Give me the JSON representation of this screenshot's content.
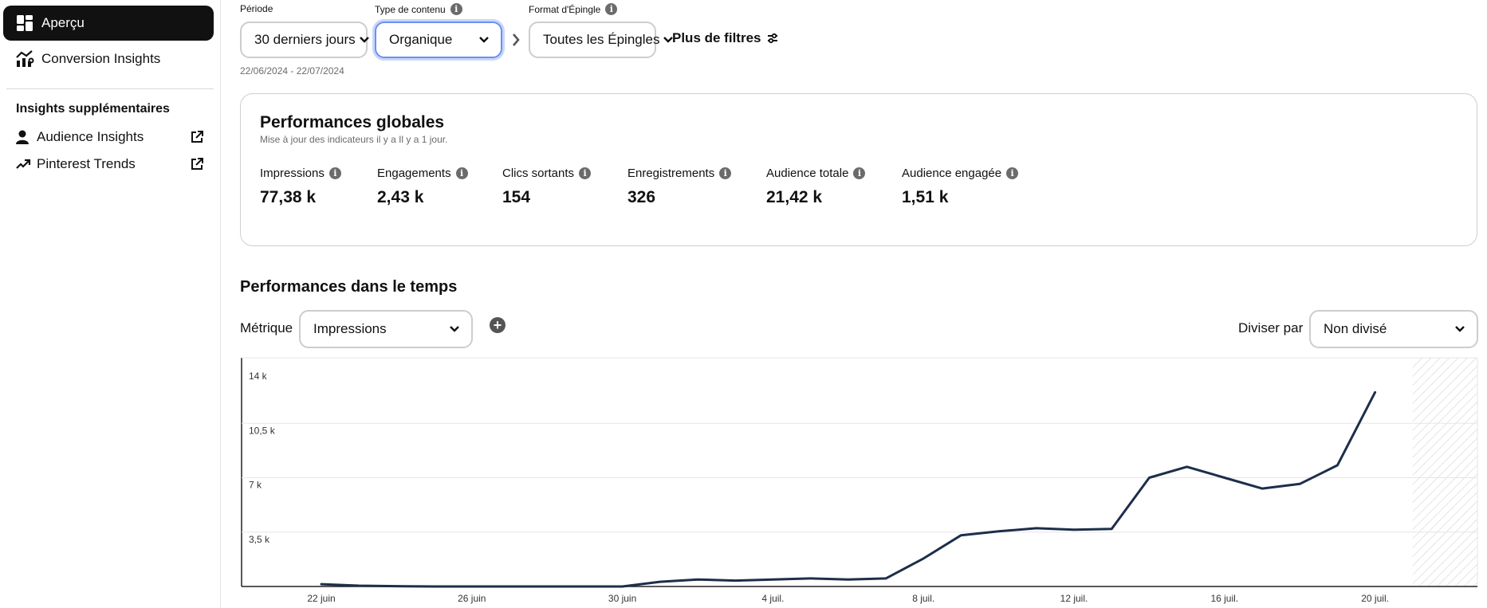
{
  "sidebar": {
    "items": [
      {
        "label": "Aperçu",
        "icon": "dashboard-icon",
        "active": true
      },
      {
        "label": "Conversion Insights",
        "icon": "conversion-chart-icon",
        "active": false
      }
    ],
    "extra_heading": "Insights supplémentaires",
    "extra_items": [
      {
        "label": "Audience Insights",
        "icon": "person-icon"
      },
      {
        "label": "Pinterest Trends",
        "icon": "trend-arrow-icon"
      }
    ]
  },
  "filters": {
    "period": {
      "label": "Période",
      "value": "30 derniers jours"
    },
    "content_type": {
      "label": "Type de contenu",
      "value": "Organique"
    },
    "pin_format": {
      "label": "Format d'Épingle",
      "value": "Toutes les Épingles"
    },
    "more": "Plus de filtres",
    "date_range": "22/06/2024 - 22/07/2024"
  },
  "overview": {
    "title": "Performances globales",
    "subtitle": "Mise à jour des indicateurs il y a Il y a 1 jour.",
    "metrics": [
      {
        "label": "Impressions",
        "value": "77,38 k"
      },
      {
        "label": "Engagements",
        "value": "2,43 k"
      },
      {
        "label": "Clics sortants",
        "value": "154"
      },
      {
        "label": "Enregistrements",
        "value": "326"
      },
      {
        "label": "Audience totale",
        "value": "21,42 k"
      },
      {
        "label": "Audience engagée",
        "value": "1,51 k"
      }
    ]
  },
  "time_section": {
    "title": "Performances dans le temps",
    "metric_label": "Métrique",
    "metric_value": "Impressions",
    "split_label": "Diviser par",
    "split_value": "Non divisé"
  },
  "colors": {
    "line": "#1c2e4a",
    "accent_focus": "#6d8ff2",
    "active_nav": "#111111"
  },
  "chart_data": {
    "type": "line",
    "x": [
      "22 juin",
      "23 juin",
      "24 juin",
      "25 juin",
      "26 juin",
      "27 juin",
      "28 juin",
      "29 juin",
      "30 juin",
      "1 juil.",
      "2 juil.",
      "3 juil.",
      "4 juil.",
      "5 juil.",
      "6 juil.",
      "7 juil.",
      "8 juil.",
      "9 juil.",
      "10 juil.",
      "11 juil.",
      "12 juil.",
      "13 juil.",
      "14 juil.",
      "15 juil.",
      "16 juil.",
      "17 juil.",
      "18 juil.",
      "19 juil.",
      "20 juil."
    ],
    "x_tick_labels": [
      "22 juin",
      "26 juin",
      "30 juin",
      "4 juil.",
      "8 juil.",
      "12 juil.",
      "16 juil.",
      "20 juil."
    ],
    "series": [
      {
        "values": [
          150,
          50,
          20,
          0,
          0,
          0,
          0,
          0,
          0,
          300,
          450,
          380,
          450,
          520,
          450,
          520,
          1800,
          3300,
          3550,
          3750,
          3650,
          3700,
          7000,
          7700,
          7000,
          6300,
          6600,
          7800,
          12500
        ]
      }
    ],
    "y_ticks": [
      3500,
      7000,
      10500,
      14000
    ],
    "y_tick_labels": [
      "3,5 k",
      "7 k",
      "10,5 k",
      "14 k"
    ],
    "ylim": [
      0,
      14000
    ],
    "grid": true,
    "shaded_region_end": "22 juil."
  }
}
